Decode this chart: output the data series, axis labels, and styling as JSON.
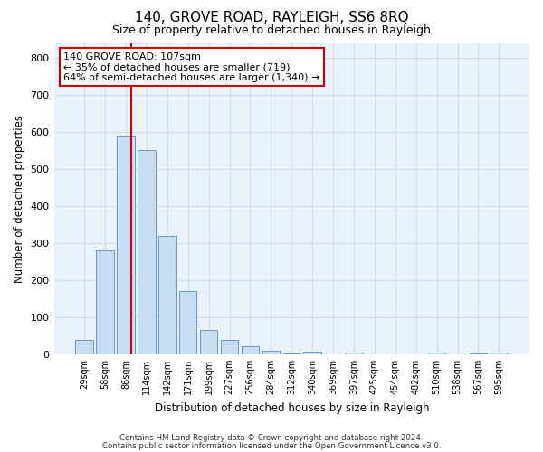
{
  "title": "140, GROVE ROAD, RAYLEIGH, SS6 8RQ",
  "subtitle": "Size of property relative to detached houses in Rayleigh",
  "xlabel": "Distribution of detached houses by size in Rayleigh",
  "ylabel": "Number of detached properties",
  "footnote1": "Contains HM Land Registry data © Crown copyright and database right 2024.",
  "footnote2": "Contains public sector information licensed under the Open Government Licence v3.0.",
  "bin_labels": [
    "29sqm",
    "58sqm",
    "86sqm",
    "114sqm",
    "142sqm",
    "171sqm",
    "199sqm",
    "227sqm",
    "256sqm",
    "284sqm",
    "312sqm",
    "340sqm",
    "369sqm",
    "397sqm",
    "425sqm",
    "454sqm",
    "482sqm",
    "510sqm",
    "538sqm",
    "567sqm",
    "595sqm"
  ],
  "bar_values": [
    38,
    280,
    590,
    550,
    320,
    170,
    65,
    38,
    22,
    10,
    2,
    8,
    0,
    5,
    0,
    0,
    0,
    5,
    0,
    3,
    5
  ],
  "bar_color": "#c8ddf2",
  "bar_edge_color": "#6699cc",
  "grid_color": "#cce0f5",
  "background_color": "#eaf3fc",
  "vline_x_bar_index": 2.78,
  "annotation_text_line1": "140 GROVE ROAD: 107sqm",
  "annotation_text_line2": "← 35% of detached houses are smaller (719)",
  "annotation_text_line3": "64% of semi-detached houses are larger (1,340) →",
  "annotation_box_color": "#ffffff",
  "annotation_box_edge": "#cc0000",
  "vline_color": "#cc0000",
  "ylim": [
    0,
    840
  ],
  "yticks": [
    0,
    100,
    200,
    300,
    400,
    500,
    600,
    700,
    800
  ]
}
